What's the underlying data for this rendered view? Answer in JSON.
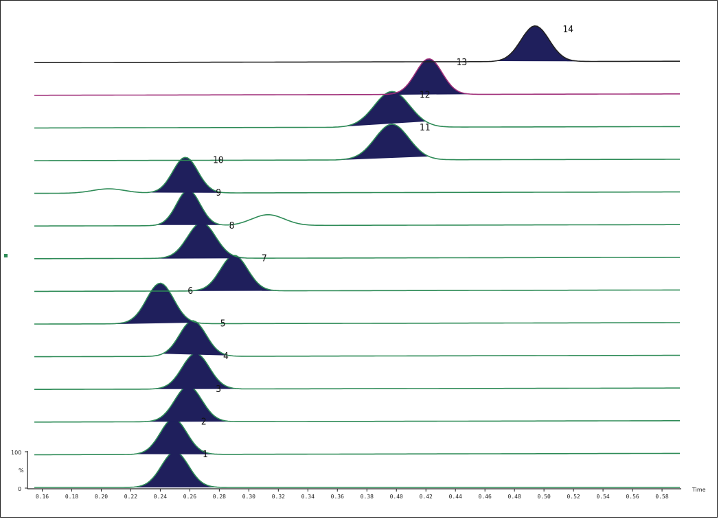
{
  "colors": {
    "fill": "#1f1f5c",
    "trace_default": "#2e8b57",
    "trace_13": "#a0307a",
    "trace_14": "#222222",
    "axis": "#222222"
  },
  "chart_data": {
    "type": "area",
    "layout_style": "stacked-offset-traces",
    "xlabel": "Time",
    "ylabel": "%",
    "y_tick_labels": [
      "100",
      "0"
    ],
    "x_ticks": [
      0.16,
      0.18,
      0.2,
      0.22,
      0.24,
      0.26,
      0.28,
      0.3,
      0.32,
      0.34,
      0.36,
      0.38,
      0.4,
      0.42,
      0.44,
      0.46,
      0.48,
      0.5,
      0.52,
      0.54,
      0.56,
      0.58
    ],
    "xlim": [
      0.15,
      0.593
    ],
    "series": [
      {
        "name": "1",
        "peak_x": 0.25,
        "peak_start": 0.222,
        "peak_end": 0.283,
        "sigma": 0.0092,
        "line": "default"
      },
      {
        "name": "2",
        "peak_x": 0.249,
        "peak_start": 0.224,
        "peak_end": 0.287,
        "sigma": 0.009,
        "line": "default"
      },
      {
        "name": "3",
        "peak_x": 0.259,
        "peak_start": 0.231,
        "peak_end": 0.298,
        "sigma": 0.0092,
        "line": "default"
      },
      {
        "name": "4",
        "peak_x": 0.264,
        "peak_start": 0.236,
        "peak_end": 0.304,
        "sigma": 0.0092,
        "line": "default"
      },
      {
        "name": "5",
        "peak_x": 0.262,
        "peak_start": 0.242,
        "peak_end": 0.305,
        "sigma": 0.009,
        "line": "default"
      },
      {
        "name": "6",
        "peak_x": 0.24,
        "peak_start": 0.207,
        "peak_end": 0.265,
        "sigma": 0.009,
        "line": "default",
        "bump_x": 0.239,
        "bump_h": 0.25
      },
      {
        "name": "7",
        "peak_x": 0.29,
        "peak_start": 0.262,
        "peak_end": 0.328,
        "sigma": 0.0092,
        "line": "default"
      },
      {
        "name": "8",
        "peak_x": 0.268,
        "peak_start": 0.235,
        "peak_end": 0.312,
        "sigma": 0.0095,
        "line": "default"
      },
      {
        "name": "9",
        "peak_x": 0.259,
        "peak_start": 0.238,
        "peak_end": 0.286,
        "sigma": 0.008,
        "line": "default",
        "bump_x": 0.313,
        "bump_h": 0.55
      },
      {
        "name": "10",
        "peak_x": 0.257,
        "peak_start": 0.233,
        "peak_end": 0.288,
        "sigma": 0.0085,
        "line": "default",
        "bump_x": 0.205,
        "bump_h": 0.22
      },
      {
        "name": "11",
        "peak_x": 0.397,
        "peak_start": 0.356,
        "peak_end": 0.422,
        "sigma": 0.0115,
        "line": "default"
      },
      {
        "name": "12",
        "peak_x": 0.397,
        "peak_start": 0.353,
        "peak_end": 0.42,
        "sigma": 0.012,
        "line": "default"
      },
      {
        "name": "13",
        "peak_x": 0.422,
        "peak_start": 0.39,
        "peak_end": 0.452,
        "sigma": 0.009,
        "line": "magenta"
      },
      {
        "name": "14",
        "peak_x": 0.494,
        "peak_start": 0.468,
        "peak_end": 0.545,
        "sigma": 0.0095,
        "line": "black"
      }
    ]
  }
}
